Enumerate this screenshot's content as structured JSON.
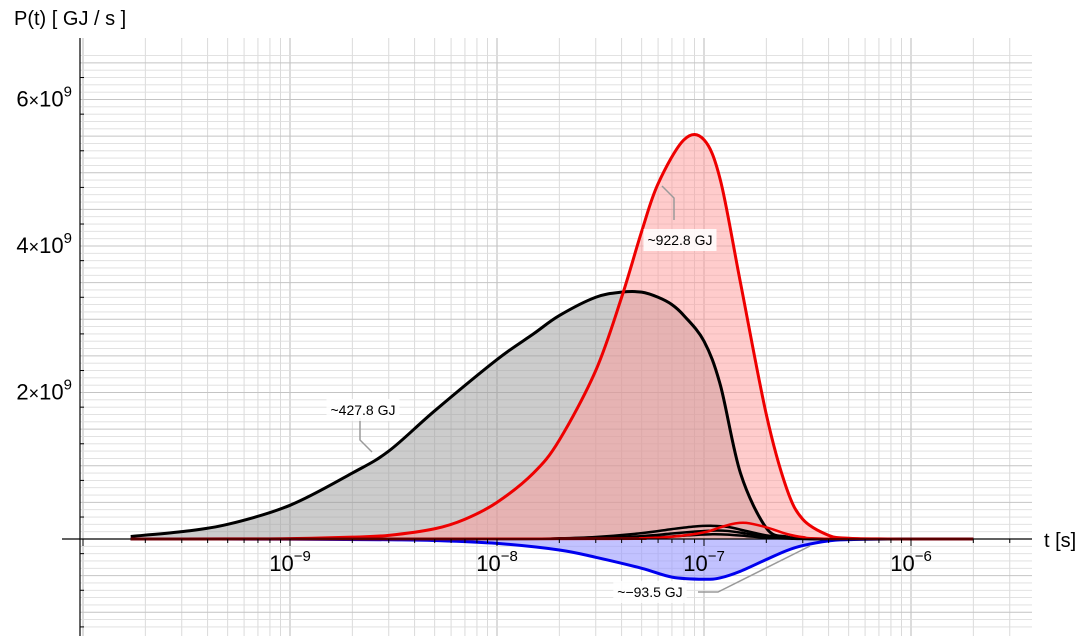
{
  "chart_data": {
    "type": "area",
    "title": "",
    "xlabel": "t [s]",
    "ylabel": "P(t) [ GJ / s ]",
    "x_scale": "log",
    "xlim": [
      1.7e-10,
      3.2e-06
    ],
    "ylim": [
      -1350000000.0,
      6800000000.0
    ],
    "grid": true,
    "x_ticks": [
      {
        "value": 1e-09,
        "base": "10",
        "exp": "−9"
      },
      {
        "value": 1e-08,
        "base": "10",
        "exp": "−8"
      },
      {
        "value": 1e-07,
        "base": "10",
        "exp": "−7"
      },
      {
        "value": 1e-06,
        "base": "10",
        "exp": "−6"
      }
    ],
    "y_ticks": [
      {
        "value": 2000000000.0,
        "mant": "2",
        "times": "×",
        "base": "10",
        "exp": "9"
      },
      {
        "value": 4000000000.0,
        "mant": "4",
        "times": "×",
        "base": "10",
        "exp": "9"
      },
      {
        "value": 6000000000.0,
        "mant": "6",
        "times": "×",
        "base": "10",
        "exp": "9"
      }
    ],
    "series": [
      {
        "color": "#000000",
        "fill": "#999999",
        "fill_opacity": 0.5,
        "filled": true,
        "x": [
          1.7e-10,
          3e-10,
          5e-10,
          1e-09,
          2e-09,
          3e-09,
          5e-09,
          1e-08,
          1.5e-08,
          2e-08,
          3e-08,
          4e-08,
          5e-08,
          6e-08,
          7e-08,
          8e-08,
          1e-07,
          1.2e-07,
          1.5e-07,
          2e-07,
          2.5e-07,
          3e-07,
          4e-07,
          6e-07,
          1e-06,
          2e-06
        ],
        "y": [
          35000000.0,
          100000000.0,
          200000000.0,
          460000000.0,
          900000000.0,
          1200000000.0,
          1750000000.0,
          2450000000.0,
          2800000000.0,
          3050000000.0,
          3300000000.0,
          3370000000.0,
          3370000000.0,
          3300000000.0,
          3200000000.0,
          3050000000.0,
          2700000000.0,
          2100000000.0,
          900000000.0,
          150000000.0,
          30000000.0,
          6000000.0,
          0,
          0,
          0,
          0
        ]
      },
      {
        "color": "#ee0000",
        "fill": "#ff9999",
        "fill_opacity": 0.5,
        "filled": true,
        "x": [
          1.7e-10,
          5e-10,
          1e-09,
          2e-09,
          3e-09,
          5e-09,
          7e-09,
          1e-08,
          1.5e-08,
          2e-08,
          3e-08,
          4e-08,
          5e-08,
          6e-08,
          8e-08,
          1e-07,
          1.2e-07,
          1.5e-07,
          2e-07,
          2.5e-07,
          3e-07,
          4e-07,
          5e-07,
          7e-07,
          1e-06,
          2e-06
        ],
        "y": [
          0,
          1000000.0,
          5000000.0,
          25000000.0,
          50000000.0,
          140000000.0,
          270000000.0,
          500000000.0,
          900000000.0,
          1350000000.0,
          2300000000.0,
          3300000000.0,
          4200000000.0,
          4850000000.0,
          5450000000.0,
          5450000000.0,
          4900000000.0,
          3500000000.0,
          1700000000.0,
          700000000.0,
          270000000.0,
          50000000.0,
          10000000.0,
          1000000.0,
          0,
          0
        ]
      },
      {
        "color": "#0000ee",
        "fill": "#9999ff",
        "fill_opacity": 0.6,
        "filled": true,
        "x": [
          1.7e-10,
          1e-09,
          3e-09,
          5e-09,
          1e-08,
          2e-08,
          3e-08,
          5e-08,
          7e-08,
          1e-07,
          1.2e-07,
          1.5e-07,
          2e-07,
          2.5e-07,
          3e-07,
          4e-07,
          5e-07,
          7e-07,
          1e-06,
          2e-06
        ],
        "y": [
          0,
          -2000000.0,
          -10000000.0,
          -20000000.0,
          -60000000.0,
          -150000000.0,
          -250000000.0,
          -400000000.0,
          -520000000.0,
          -550000000.0,
          -530000000.0,
          -440000000.0,
          -280000000.0,
          -160000000.0,
          -90000000.0,
          -25000000.0,
          -8000000.0,
          -1000000.0,
          0,
          0
        ]
      },
      {
        "color": "#000000",
        "filled": false,
        "x": [
          1.7e-10,
          1e-08,
          2e-08,
          3e-08,
          5e-08,
          7e-08,
          9e-08,
          1.1e-07,
          1.3e-07,
          1.6e-07,
          2e-07,
          2.6e-07,
          3.5e-07,
          5e-07,
          2e-06
        ],
        "y": [
          0,
          1000000.0,
          10000000.0,
          28000000.0,
          80000000.0,
          135000000.0,
          170000000.0,
          180000000.0,
          165000000.0,
          110000000.0,
          50000000.0,
          15000000.0,
          3000000.0,
          0,
          0
        ]
      },
      {
        "color": "#000000",
        "filled": false,
        "x": [
          1.7e-10,
          2e-08,
          3e-08,
          5e-08,
          7e-08,
          9e-08,
          1.1e-07,
          1.3e-07,
          1.6e-07,
          2e-07,
          2.6e-07,
          3.5e-07,
          2e-06
        ],
        "y": [
          0,
          3000000.0,
          12000000.0,
          40000000.0,
          75000000.0,
          100000000.0,
          115000000.0,
          110000000.0,
          75000000.0,
          35000000.0,
          10000000.0,
          2000000.0,
          0
        ]
      },
      {
        "color": "#000000",
        "filled": false,
        "x": [
          1.7e-10,
          3e-08,
          5e-08,
          7e-08,
          9e-08,
          1.1e-07,
          1.3e-07,
          1.6e-07,
          2e-07,
          2.6e-07,
          3.5e-07,
          2e-06
        ],
        "y": [
          0,
          3000000.0,
          15000000.0,
          35000000.0,
          55000000.0,
          65000000.0,
          60000000.0,
          40000000.0,
          18000000.0,
          5000000.0,
          1000000.0,
          0
        ]
      },
      {
        "color": "#ee0000",
        "filled": false,
        "x": [
          1.7e-10,
          3e-08,
          5e-08,
          7e-08,
          1e-07,
          1.2e-07,
          1.4e-07,
          1.6e-07,
          2e-07,
          2.5e-07,
          3e-07,
          4e-07,
          2e-06
        ],
        "y": [
          0,
          2000000.0,
          10000000.0,
          30000000.0,
          90000000.0,
          160000000.0,
          210000000.0,
          220000000.0,
          160000000.0,
          70000000.0,
          25000000.0,
          4000000.0,
          0
        ]
      }
    ],
    "annotations": [
      {
        "text": "~427.8 GJ",
        "series": 0,
        "x": 2.5e-09,
        "y": 1150000000.0
      },
      {
        "text": "~922.8 GJ",
        "series": 1,
        "x": 7.3e-08,
        "y": 4700000000.0
      },
      {
        "text": "~−93.5 GJ",
        "series": 2,
        "x": 2.4e-07,
        "y": -160000000.0
      }
    ]
  }
}
